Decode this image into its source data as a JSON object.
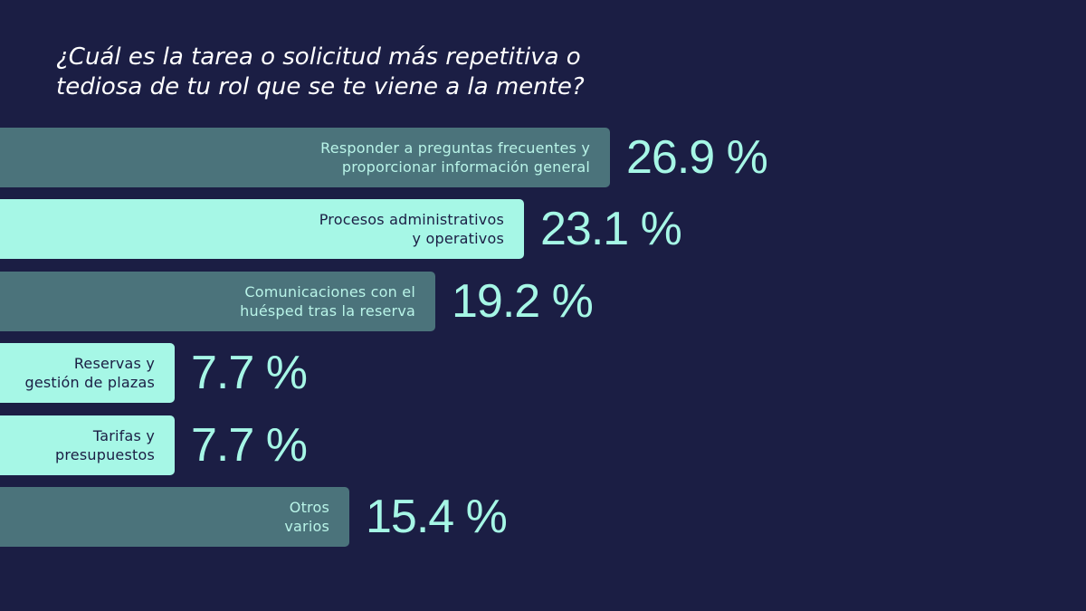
{
  "chart_data": {
    "type": "bar",
    "orientation": "horizontal",
    "title": "¿Cuál es la tarea o solicitud más repetitiva o tediosa de tu rol que se te viene a la mente?",
    "title_lines": [
      "¿Cuál es la tarea o solicitud más repetitiva o",
      "tediosa de tu rol que se te viene a la mente?"
    ],
    "unit": "%",
    "xlim": [
      0,
      26.9
    ],
    "colors": {
      "background": "#1b1e44",
      "bar_dark": "#4b737b",
      "bar_light": "#a6f7e6",
      "value_text": "#a6f7e6",
      "label_on_dark": "#b9f4e8",
      "label_on_light": "#1b1e44"
    },
    "bars": [
      {
        "label_lines": [
          "Responder a preguntas frecuentes y",
          "proporcionar información general"
        ],
        "value": 26.9,
        "value_label": "26.9 %",
        "style": "dark"
      },
      {
        "label_lines": [
          "Procesos administrativos",
          "y operativos"
        ],
        "value": 23.1,
        "value_label": "23.1 %",
        "style": "light"
      },
      {
        "label_lines": [
          "Comunicaciones con el",
          "huésped tras la reserva"
        ],
        "value": 19.2,
        "value_label": "19.2 %",
        "style": "dark"
      },
      {
        "label_lines": [
          "Reservas y",
          "gestión de plazas"
        ],
        "value": 7.7,
        "value_label": "7.7 %",
        "style": "light"
      },
      {
        "label_lines": [
          "Tarifas y",
          "presupuestos"
        ],
        "value": 7.7,
        "value_label": "7.7 %",
        "style": "light"
      },
      {
        "label_lines": [
          "Otros",
          "varios"
        ],
        "value": 15.4,
        "value_label": "15.4 %",
        "style": "dark"
      }
    ]
  }
}
